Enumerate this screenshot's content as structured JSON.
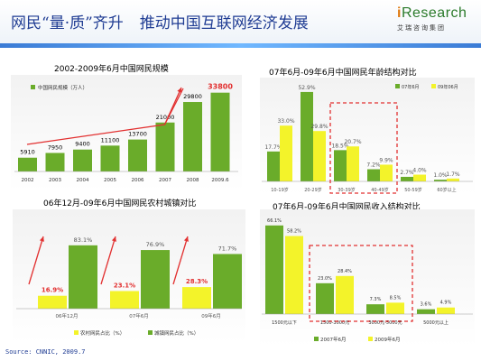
{
  "header": {
    "title_left": "网民“量·质”齐升",
    "title_right": "推动中国互联网经济发展",
    "logo_brand_prefix": "i",
    "logo_brand": "Research",
    "logo_cn": "艾瑞咨询集团"
  },
  "source": "Source: CNNIC, 2009.7",
  "colors": {
    "green": "#6aac2a",
    "yellow": "#f3f32a",
    "red": "#e23030",
    "blue": "#1f3c93"
  },
  "chart_data": [
    {
      "type": "bar",
      "title": "2002-2009年6月中国网民规模",
      "legend": [
        "中国网民规模（万人）"
      ],
      "categories": [
        "2002",
        "2003",
        "2004",
        "2005",
        "2006",
        "2007",
        "2008",
        "2009.6"
      ],
      "values": [
        5910,
        7950,
        9400,
        11100,
        13700,
        21000,
        29800,
        33800
      ],
      "value_labels": [
        "5910",
        "7950",
        "9400",
        "11100",
        "13700",
        "21000",
        "29800",
        "33800"
      ],
      "highlight_last": true,
      "ylim": [
        0,
        36000
      ]
    },
    {
      "type": "bar",
      "title": "07年6月-09年6月中国网民年龄结构对比",
      "categories": [
        "10-19岁",
        "20-29岁",
        "30-39岁",
        "40-49岁",
        "50-59岁",
        "60岁以上"
      ],
      "series": [
        {
          "name": "07年6月",
          "values": [
            17.7,
            52.9,
            18.5,
            7.2,
            2.7,
            1.0
          ]
        },
        {
          "name": "09年06月",
          "values": [
            33.0,
            29.8,
            20.7,
            9.9,
            4.0,
            1.7
          ]
        }
      ],
      "value_labels": [
        [
          "17.7%",
          "52.9%",
          "18.5%",
          "7.2%",
          "2.7%",
          "1.0%"
        ],
        [
          "33.0%",
          "29.8%",
          "20.7%",
          "9.9%",
          "4.0%",
          "1.7%"
        ]
      ],
      "ylim": [
        0,
        55
      ]
    },
    {
      "type": "bar",
      "title": "06年12月-09年6月中国网民农村城镇对比",
      "categories": [
        "06年12月",
        "07年6月",
        "09年6月"
      ],
      "series": [
        {
          "name": "农村网民占比（%）",
          "values": [
            16.9,
            23.1,
            28.3
          ]
        },
        {
          "name": "城镇网民占比（%）",
          "values": [
            83.1,
            76.9,
            71.7
          ]
        }
      ],
      "value_labels": [
        [
          "16.9%",
          "23.1%",
          "28.3%"
        ],
        [
          "83.1%",
          "76.9%",
          "71.7%"
        ]
      ],
      "ylim": [
        0,
        90
      ]
    },
    {
      "type": "bar",
      "title": "07年6月-09年6月中国网民收入结构对比",
      "categories": [
        "1500元以下",
        "1500-3000元",
        "3000元-5000元",
        "5000元以上"
      ],
      "series": [
        {
          "name": "2007年6月",
          "values": [
            66.1,
            23.0,
            7.3,
            3.6
          ]
        },
        {
          "name": "2009年6月",
          "values": [
            58.2,
            28.4,
            8.5,
            4.9
          ]
        }
      ],
      "value_labels": [
        [
          "66.1%",
          "23.0%",
          "7.3%",
          "3.6%"
        ],
        [
          "58.2%",
          "28.4%",
          "8.5%",
          "4.9%"
        ]
      ],
      "ylim": [
        0,
        70
      ]
    }
  ]
}
